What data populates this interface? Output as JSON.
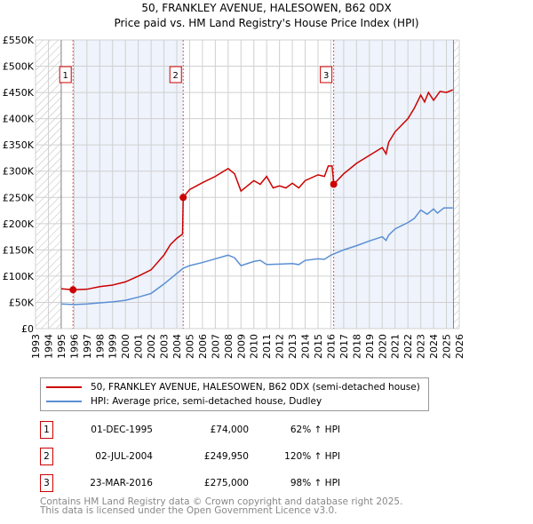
{
  "chart_data": {
    "type": "line",
    "title": "50, FRANKLEY AVENUE, HALESOWEN, B62 0DX",
    "subtitle": "Price paid vs. HM Land Registry's House Price Index (HPI)",
    "xlim": [
      1993,
      2026
    ],
    "ylim": [
      0,
      550000
    ],
    "x_ticks": [
      "1993",
      "1994",
      "1995",
      "1996",
      "1997",
      "1998",
      "1999",
      "2000",
      "2001",
      "2002",
      "2003",
      "2004",
      "2005",
      "2006",
      "2007",
      "2008",
      "2009",
      "2010",
      "2011",
      "2012",
      "2013",
      "2014",
      "2015",
      "2016",
      "2017",
      "2018",
      "2019",
      "2020",
      "2021",
      "2022",
      "2023",
      "2024",
      "2025",
      "2026"
    ],
    "y_ticks": [
      {
        "v": 0,
        "label": "£0"
      },
      {
        "v": 50000,
        "label": "£50K"
      },
      {
        "v": 100000,
        "label": "£100K"
      },
      {
        "v": 150000,
        "label": "£150K"
      },
      {
        "v": 200000,
        "label": "£200K"
      },
      {
        "v": 250000,
        "label": "£250K"
      },
      {
        "v": 300000,
        "label": "£300K"
      },
      {
        "v": 350000,
        "label": "£350K"
      },
      {
        "v": 400000,
        "label": "£400K"
      },
      {
        "v": 450000,
        "label": "£450K"
      },
      {
        "v": 500000,
        "label": "£500K"
      },
      {
        "v": 550000,
        "label": "£550K"
      }
    ],
    "grid": true,
    "hatched_ranges": [
      [
        1993,
        1995
      ],
      [
        2025.55,
        2026
      ]
    ],
    "shaded_ranges": [
      [
        1995.92,
        2004.5
      ],
      [
        2016.22,
        2025.55
      ]
    ],
    "series": [
      {
        "name": "50, FRANKLEY AVENUE, HALESOWEN, B62 0DX (semi-detached house)",
        "color": "#cc0000",
        "x": [
          1995,
          1995.92,
          1997,
          1998,
          1999,
          2000,
          2001,
          2002,
          2003,
          2003.5,
          2004,
          2004.45,
          2004.5,
          2005,
          2006,
          2007,
          2008,
          2008.5,
          2009,
          2010,
          2010.5,
          2011,
          2011.5,
          2012,
          2012.5,
          2013,
          2013.5,
          2014,
          2015,
          2015.5,
          2015.8,
          2016.1,
          2016.22,
          2017,
          2018,
          2019,
          2020,
          2020.3,
          2020.5,
          2021,
          2022,
          2022.5,
          2023,
          2023.3,
          2023.6,
          2024,
          2024.5,
          2025,
          2025.5
        ],
        "y": [
          76000,
          74000,
          75000,
          80000,
          83000,
          89000,
          100000,
          112000,
          140000,
          160000,
          172000,
          180000,
          249950,
          265000,
          278000,
          290000,
          305000,
          295000,
          262000,
          282000,
          275000,
          290000,
          268000,
          272000,
          268000,
          277000,
          268000,
          282000,
          293000,
          290000,
          310000,
          310000,
          275000,
          295000,
          315000,
          330000,
          345000,
          333000,
          355000,
          375000,
          400000,
          420000,
          445000,
          432000,
          450000,
          435000,
          452000,
          450000,
          455000
        ]
      },
      {
        "name": "HPI: Average price, semi-detached house, Dudley",
        "color": "#5b8fd4",
        "x": [
          1995,
          1996,
          1997,
          1998,
          1999,
          2000,
          2001,
          2002,
          2003,
          2004,
          2004.5,
          2005,
          2006,
          2007,
          2008,
          2008.5,
          2009,
          2010,
          2010.5,
          2011,
          2012,
          2013,
          2013.5,
          2014,
          2015,
          2015.5,
          2016,
          2017,
          2018,
          2019,
          2020,
          2020.3,
          2020.5,
          2021,
          2022,
          2022.5,
          2023,
          2023.5,
          2024,
          2024.3,
          2024.8,
          2025.5
        ],
        "y": [
          47000,
          46000,
          47000,
          49000,
          51000,
          54000,
          60000,
          67000,
          85000,
          105000,
          115000,
          120000,
          126000,
          133000,
          140000,
          135000,
          120000,
          128000,
          130000,
          122000,
          123000,
          124000,
          122000,
          130000,
          133000,
          132000,
          140000,
          150000,
          158000,
          167000,
          175000,
          168000,
          178000,
          190000,
          202000,
          210000,
          226000,
          218000,
          228000,
          220000,
          230000,
          230000
        ]
      }
    ],
    "sales": [
      {
        "label": "1",
        "x": 1995.92,
        "y": 74000,
        "date": "01-DEC-1995",
        "price": "£74,000",
        "hpi": "62% ↑ HPI"
      },
      {
        "label": "2",
        "x": 2004.5,
        "y": 249950,
        "date": "02-JUL-2004",
        "price": "£249,950",
        "hpi": "120% ↑ HPI"
      },
      {
        "label": "3",
        "x": 2016.22,
        "y": 275000,
        "date": "23-MAR-2016",
        "price": "£275,000",
        "hpi": "98% ↑ HPI"
      }
    ]
  },
  "footer": {
    "line1": "Contains HM Land Registry data © Crown copyright and database right 2025.",
    "line2": "This data is licensed under the Open Government Licence v3.0."
  }
}
